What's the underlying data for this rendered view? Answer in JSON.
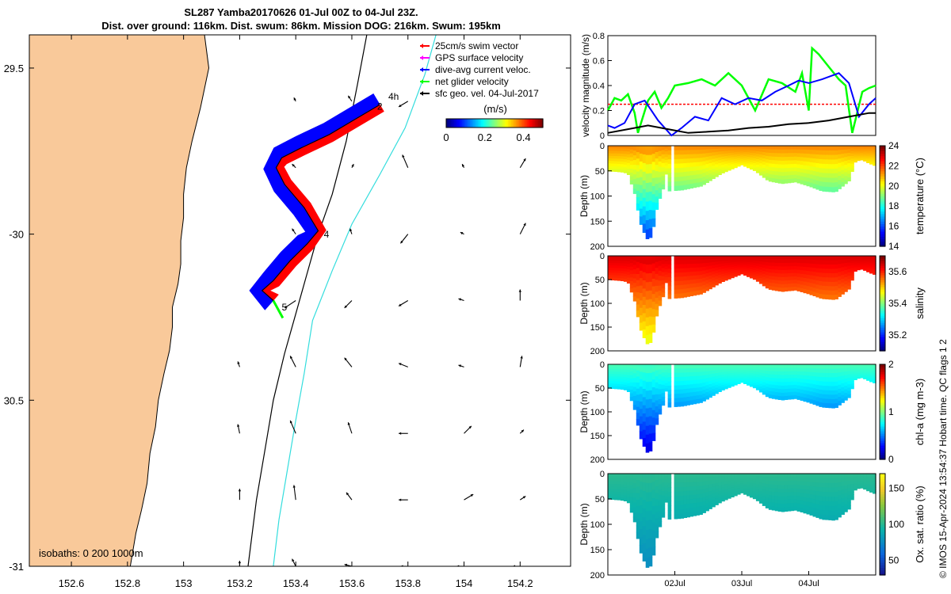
{
  "title": {
    "line1": "SL287 Yamba20170626 01-Jul 00Z to 04-Jul 23Z.",
    "line2": "Dist. over ground: 116km. Dist. swum: 86km. Mission DOG: 216km. Swum: 195km"
  },
  "credit": "© IMOS 15-Apr-2024 13:54:37 Hobart time. QC flags 1  2",
  "colors": {
    "land": "#f9c99a",
    "swim_vector": "#ff0000",
    "gps_velocity": "#ff00ff",
    "current": "#0000ff",
    "net_velocity": "#00ff00",
    "sfc_geo": "#000000",
    "isobath_200": "#000000",
    "isobath_1000": "#33dddd"
  },
  "chart_data": [
    {
      "type": "scatter",
      "name": "map",
      "xlim": [
        152.45,
        154.38
      ],
      "ylim": [
        -31.0,
        -29.4
      ],
      "xticks": [
        152.6,
        152.8,
        153.0,
        153.2,
        153.4,
        153.6,
        153.8,
        154.0,
        154.2
      ],
      "xtick_labels": [
        "152.6",
        "152.8",
        "153",
        "153.2",
        "153.4",
        "153.6",
        "153.8",
        "154",
        "154.2"
      ],
      "yticks": [
        -29.5,
        -30.0,
        -30.5,
        -31.0
      ],
      "ytick_labels": [
        "29.5",
        "-30",
        "30.5",
        "-31"
      ],
      "legend": {
        "placement": "top-right",
        "entries": [
          "25cm/s swim vector",
          "GPS surface velocity",
          "dive-avg current veloc.",
          "net glider velocity",
          "sfc geo. vel. 04-Jul-2017"
        ]
      },
      "colorbar": {
        "label": "(m/s)",
        "ticks": [
          0,
          0.2,
          0.4
        ],
        "tick_labels": [
          "0",
          "0.2",
          "0.4"
        ],
        "range": [
          0,
          0.5
        ]
      },
      "isobath_label": "isobaths: 0   200  1000m",
      "coastline": [
        [
          152.45,
          -29.37
        ],
        [
          153.07,
          -29.37
        ],
        [
          153.09,
          -29.5
        ],
        [
          153.06,
          -29.62
        ],
        [
          153.03,
          -29.72
        ],
        [
          153.01,
          -29.8
        ],
        [
          153.0,
          -29.88
        ],
        [
          153.0,
          -29.95
        ],
        [
          152.99,
          -30.02
        ],
        [
          152.99,
          -30.09
        ],
        [
          152.98,
          -30.15
        ],
        [
          152.96,
          -30.22
        ],
        [
          152.96,
          -30.28
        ],
        [
          152.95,
          -30.35
        ],
        [
          152.93,
          -30.42
        ],
        [
          152.91,
          -30.5
        ],
        [
          152.9,
          -30.58
        ],
        [
          152.88,
          -30.66
        ],
        [
          152.87,
          -30.75
        ],
        [
          152.85,
          -30.83
        ],
        [
          152.83,
          -30.9
        ],
        [
          152.81,
          -31.0
        ],
        [
          152.45,
          -31.0
        ]
      ],
      "isobath_200m": [
        [
          153.66,
          -29.37
        ],
        [
          153.62,
          -29.55
        ],
        [
          153.58,
          -29.72
        ],
        [
          153.53,
          -29.88
        ],
        [
          153.48,
          -30.0
        ],
        [
          153.44,
          -30.12
        ],
        [
          153.4,
          -30.24
        ],
        [
          153.36,
          -30.36
        ],
        [
          153.32,
          -30.5
        ],
        [
          153.29,
          -30.65
        ],
        [
          153.26,
          -30.8
        ],
        [
          153.23,
          -31.0
        ]
      ],
      "isobath_1000m": [
        [
          153.91,
          -29.37
        ],
        [
          153.86,
          -29.52
        ],
        [
          153.79,
          -29.68
        ],
        [
          153.7,
          -29.82
        ],
        [
          153.6,
          -29.97
        ],
        [
          153.53,
          -30.11
        ],
        [
          153.46,
          -30.26
        ],
        [
          153.43,
          -30.42
        ],
        [
          153.4,
          -30.56
        ],
        [
          153.37,
          -30.71
        ],
        [
          153.34,
          -30.86
        ],
        [
          153.32,
          -31.0
        ]
      ],
      "glider_track": [
        [
          153.7,
          -29.61
        ],
        [
          153.6,
          -29.66
        ],
        [
          153.52,
          -29.7
        ],
        [
          153.42,
          -29.74
        ],
        [
          153.35,
          -29.77
        ],
        [
          153.33,
          -29.8
        ],
        [
          153.36,
          -29.85
        ],
        [
          153.43,
          -29.92
        ],
        [
          153.48,
          -29.99
        ],
        [
          153.44,
          -30.03
        ],
        [
          153.38,
          -30.08
        ],
        [
          153.32,
          -30.14
        ],
        [
          153.28,
          -30.17
        ],
        [
          153.32,
          -30.2
        ]
      ],
      "track_day_labels": [
        {
          "text": "2",
          "lon": 153.69,
          "lat": -29.625
        },
        {
          "text": "4h",
          "lon": 153.73,
          "lat": -29.595
        },
        {
          "text": "4",
          "lon": 153.5,
          "lat": -30.01
        },
        {
          "text": "5",
          "lon": 153.35,
          "lat": -30.23
        }
      ],
      "sfc_geo_vectors": [
        {
          "lon": 153.4,
          "lat": -29.6,
          "u": -0.01,
          "v": 0.02
        },
        {
          "lon": 153.6,
          "lat": -29.6,
          "u": -0.02,
          "v": 0.03
        },
        {
          "lon": 153.8,
          "lat": -29.6,
          "u": -0.05,
          "v": -0.03
        },
        {
          "lon": 153.4,
          "lat": -29.8,
          "u": -0.02,
          "v": 0.02
        },
        {
          "lon": 153.6,
          "lat": -29.8,
          "u": 0.01,
          "v": 0.02
        },
        {
          "lon": 153.8,
          "lat": -29.8,
          "u": -0.03,
          "v": 0.07
        },
        {
          "lon": 154.0,
          "lat": -29.8,
          "u": -0.01,
          "v": 0.02
        },
        {
          "lon": 154.2,
          "lat": -29.8,
          "u": 0.03,
          "v": 0.05
        },
        {
          "lon": 153.4,
          "lat": -30.0,
          "u": -0.02,
          "v": 0.03
        },
        {
          "lon": 153.6,
          "lat": -30.0,
          "u": -0.01,
          "v": 0.03
        },
        {
          "lon": 153.8,
          "lat": -30.0,
          "u": -0.04,
          "v": -0.05
        },
        {
          "lon": 154.0,
          "lat": -30.0,
          "u": -0.02,
          "v": 0.01
        },
        {
          "lon": 154.2,
          "lat": -30.0,
          "u": 0.03,
          "v": 0.06
        },
        {
          "lon": 153.4,
          "lat": -30.2,
          "u": -0.06,
          "v": -0.04
        },
        {
          "lon": 153.6,
          "lat": -30.2,
          "u": -0.04,
          "v": -0.04
        },
        {
          "lon": 153.8,
          "lat": -30.2,
          "u": -0.05,
          "v": -0.03
        },
        {
          "lon": 154.0,
          "lat": -30.2,
          "u": -0.03,
          "v": 0.01
        },
        {
          "lon": 154.2,
          "lat": -30.2,
          "u": 0.0,
          "v": 0.06
        },
        {
          "lon": 153.2,
          "lat": -30.4,
          "u": -0.01,
          "v": 0.03
        },
        {
          "lon": 153.4,
          "lat": -30.4,
          "u": -0.03,
          "v": 0.06
        },
        {
          "lon": 153.6,
          "lat": -30.4,
          "u": -0.04,
          "v": 0.05
        },
        {
          "lon": 153.8,
          "lat": -30.4,
          "u": -0.05,
          "v": 0.02
        },
        {
          "lon": 154.0,
          "lat": -30.4,
          "u": -0.03,
          "v": 0.01
        },
        {
          "lon": 154.2,
          "lat": -30.4,
          "u": 0.01,
          "v": 0.06
        },
        {
          "lon": 153.2,
          "lat": -30.6,
          "u": -0.01,
          "v": 0.05
        },
        {
          "lon": 153.4,
          "lat": -30.6,
          "u": -0.03,
          "v": 0.07
        },
        {
          "lon": 153.6,
          "lat": -30.6,
          "u": -0.02,
          "v": 0.06
        },
        {
          "lon": 153.8,
          "lat": -30.6,
          "u": -0.05,
          "v": 0.0
        },
        {
          "lon": 154.0,
          "lat": -30.6,
          "u": 0.04,
          "v": 0.04
        },
        {
          "lon": 154.2,
          "lat": -30.6,
          "u": 0.02,
          "v": 0.02
        },
        {
          "lon": 153.2,
          "lat": -30.8,
          "u": 0.0,
          "v": 0.06
        },
        {
          "lon": 153.4,
          "lat": -30.8,
          "u": -0.01,
          "v": 0.08
        },
        {
          "lon": 153.6,
          "lat": -30.8,
          "u": -0.03,
          "v": 0.04
        },
        {
          "lon": 153.8,
          "lat": -30.8,
          "u": -0.05,
          "v": 0.0
        },
        {
          "lon": 154.0,
          "lat": -30.8,
          "u": 0.05,
          "v": 0.03
        },
        {
          "lon": 154.2,
          "lat": -30.8,
          "u": 0.03,
          "v": 0.02
        },
        {
          "lon": 153.2,
          "lat": -31.0,
          "u": 0.0,
          "v": 0.03
        },
        {
          "lon": 153.4,
          "lat": -31.0,
          "u": -0.02,
          "v": 0.04
        },
        {
          "lon": 153.6,
          "lat": -31.0,
          "u": -0.04,
          "v": 0.01
        },
        {
          "lon": 153.8,
          "lat": -31.0,
          "u": -0.04,
          "v": 0.0
        },
        {
          "lon": 154.0,
          "lat": -31.0,
          "u": -0.04,
          "v": 0.0
        },
        {
          "lon": 154.2,
          "lat": -31.0,
          "u": -0.04,
          "v": 0.0
        }
      ]
    },
    {
      "type": "line",
      "name": "velocity",
      "ylabel": "velocity magnitude (m/s)",
      "ylim": [
        0,
        0.8
      ],
      "yticks": [
        0,
        0.2,
        0.4,
        0.6,
        0.8
      ],
      "ytick_labels": [
        "0",
        "0.2",
        "0.4",
        "0.6",
        "0.8"
      ],
      "x_days": [
        0,
        4
      ],
      "series": [
        {
          "color": "#ff0000",
          "style": "dashed",
          "t": [
            0,
            4
          ],
          "values": [
            0.25,
            0.25
          ]
        },
        {
          "color": "#00ff00",
          "t": [
            0,
            0.1,
            0.2,
            0.3,
            0.4,
            0.45,
            0.6,
            0.7,
            0.8,
            0.9,
            1.0,
            1.2,
            1.4,
            1.6,
            1.8,
            2.0,
            2.2,
            2.4,
            2.6,
            2.8,
            2.9,
            3.0,
            3.05,
            3.15,
            3.3,
            3.45,
            3.55,
            3.65,
            3.8,
            3.9,
            4.0
          ],
          "values": [
            0.2,
            0.3,
            0.28,
            0.33,
            0.18,
            0.02,
            0.28,
            0.35,
            0.22,
            0.3,
            0.4,
            0.42,
            0.45,
            0.4,
            0.5,
            0.4,
            0.2,
            0.45,
            0.42,
            0.35,
            0.5,
            0.2,
            0.7,
            0.65,
            0.55,
            0.45,
            0.4,
            0.02,
            0.35,
            0.38,
            0.4
          ]
        },
        {
          "color": "#0000ff",
          "t": [
            0,
            0.1,
            0.25,
            0.4,
            0.55,
            0.75,
            0.95,
            1.1,
            1.3,
            1.5,
            1.7,
            1.9,
            2.1,
            2.3,
            2.5,
            2.7,
            2.85,
            3.0,
            3.2,
            3.45,
            3.6,
            3.75,
            3.9,
            4.0
          ],
          "values": [
            0.08,
            0.06,
            0.1,
            0.25,
            0.28,
            0.12,
            0.0,
            0.06,
            0.15,
            0.12,
            0.3,
            0.25,
            0.3,
            0.28,
            0.35,
            0.4,
            0.44,
            0.42,
            0.45,
            0.5,
            0.42,
            0.15,
            0.25,
            0.3
          ]
        },
        {
          "color": "#000000",
          "t": [
            0,
            0.3,
            0.6,
            0.9,
            1.2,
            1.5,
            1.8,
            2.1,
            2.4,
            2.7,
            3.0,
            3.3,
            3.6,
            3.9,
            4.0
          ],
          "values": [
            0.02,
            0.05,
            0.08,
            0.05,
            0.02,
            0.03,
            0.04,
            0.06,
            0.07,
            0.09,
            0.1,
            0.12,
            0.15,
            0.18,
            0.18
          ]
        }
      ]
    },
    {
      "type": "heatmap",
      "name": "temperature",
      "ylabel": "Depth (m)",
      "colorbar_label": "temperature (°C)",
      "clim": [
        14,
        24
      ],
      "cticks": [
        14,
        16,
        18,
        20,
        22,
        24
      ],
      "ylim": [
        0,
        200
      ],
      "yticks": [
        0,
        50,
        100,
        150,
        200
      ],
      "surface_value": 21.5,
      "deep_value": 15.5
    },
    {
      "type": "heatmap",
      "name": "salinity",
      "ylabel": "Depth (m)",
      "colorbar_label": "salinity",
      "clim": [
        35.1,
        35.7
      ],
      "cticks": [
        35.2,
        35.4,
        35.6
      ],
      "ylim": [
        0,
        200
      ],
      "yticks": [
        0,
        50,
        100,
        150,
        200
      ],
      "surface_value": 35.65,
      "deep_value": 35.45
    },
    {
      "type": "heatmap",
      "name": "chla",
      "ylabel": "Depth (m)",
      "colorbar_label": "chl-a (mg m-3)",
      "clim": [
        0,
        2
      ],
      "cticks": [
        0,
        1,
        2
      ],
      "ylim": [
        0,
        200
      ],
      "yticks": [
        0,
        50,
        100,
        150,
        200
      ],
      "surface_value": 0.9,
      "deep_value": 0.15
    },
    {
      "type": "heatmap",
      "name": "oxygen",
      "ylabel": "Depth (m)",
      "colorbar_label": "Ox. sat. ratio (%)",
      "clim": [
        30,
        170
      ],
      "cticks": [
        50,
        100,
        150
      ],
      "ylim": [
        0,
        200
      ],
      "yticks": [
        0,
        50,
        100,
        150,
        200
      ],
      "surface_value": 102,
      "deep_value": 75
    }
  ],
  "time_axis": {
    "x_days": [
      0,
      4
    ],
    "ticks": [
      1,
      2,
      3
    ],
    "tick_labels": [
      "02Jul",
      "03Jul",
      "04Jul"
    ]
  },
  "section_bottom_depth": {
    "t": [
      0,
      0.2,
      0.3,
      0.4,
      0.45,
      0.5,
      0.55,
      0.6,
      0.65,
      0.7,
      0.75,
      0.8,
      0.85,
      0.88,
      0.9,
      1.1,
      1.4,
      1.7,
      2.0,
      2.2,
      2.4,
      2.6,
      2.8,
      3.0,
      3.2,
      3.4,
      3.6,
      3.7,
      3.8,
      3.9,
      4.0
    ],
    "depth": [
      50,
      52,
      55,
      95,
      130,
      160,
      175,
      188,
      180,
      150,
      110,
      100,
      70,
      50,
      90,
      88,
      80,
      55,
      38,
      50,
      70,
      75,
      72,
      80,
      90,
      92,
      70,
      30,
      28,
      35,
      40
    ]
  }
}
